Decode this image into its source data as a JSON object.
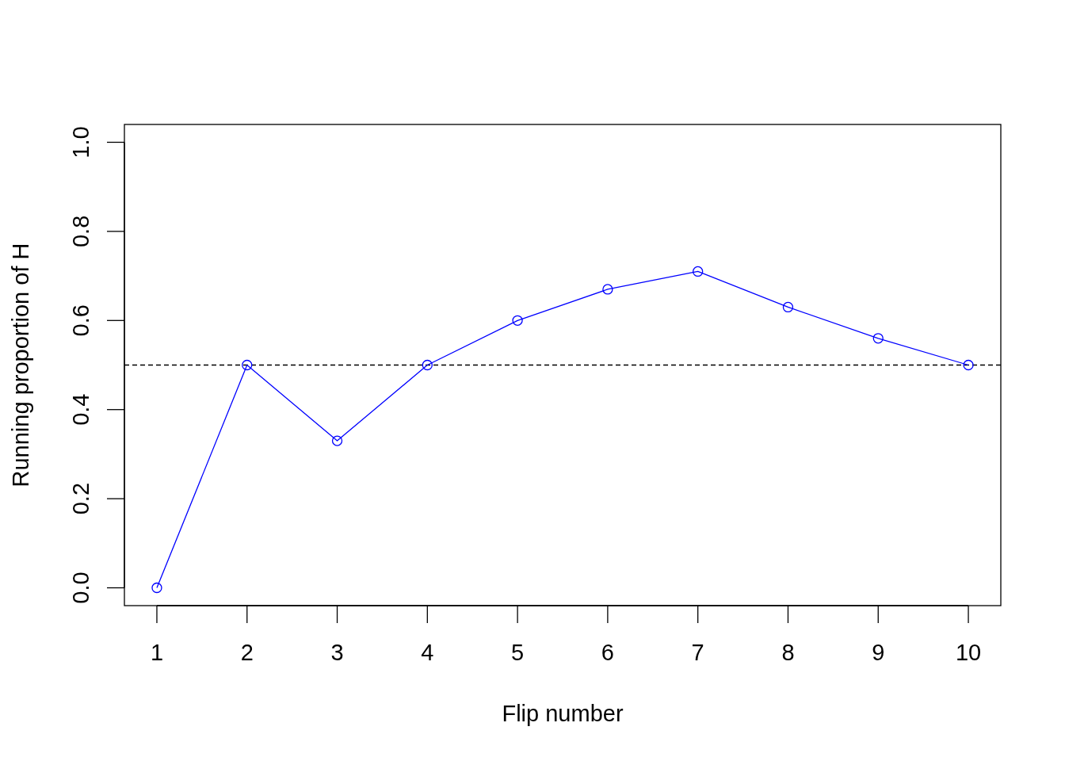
{
  "chart_data": {
    "type": "line",
    "xlabel": "Flip number",
    "ylabel": "Running proportion of H",
    "x": [
      1,
      2,
      3,
      4,
      5,
      6,
      7,
      8,
      9,
      10
    ],
    "series": [
      {
        "color": "#0000ff",
        "values": [
          0,
          0.5,
          0.33,
          0.5,
          0.6,
          0.67,
          0.71,
          0.63,
          0.56,
          0.5
        ]
      }
    ],
    "xlim": [
      0.64,
      10.36
    ],
    "ylim": [
      -0.04,
      1.04
    ],
    "xticks": [
      1,
      2,
      3,
      4,
      5,
      6,
      7,
      8,
      9,
      10
    ],
    "yticks": [
      {
        "value": 0,
        "label": "0.0"
      },
      {
        "value": 0.2,
        "label": "0.2"
      },
      {
        "value": 0.4,
        "label": "0.4"
      },
      {
        "value": 0.6,
        "label": "0.6"
      },
      {
        "value": 0.8,
        "label": "0.8"
      },
      {
        "value": 1,
        "label": "1.0"
      }
    ],
    "ref_lines": [
      {
        "axis": "y",
        "value": 0.5,
        "color": "#000000",
        "line_style": "dashed"
      }
    ],
    "marker": "circle",
    "line_style": "solid"
  }
}
